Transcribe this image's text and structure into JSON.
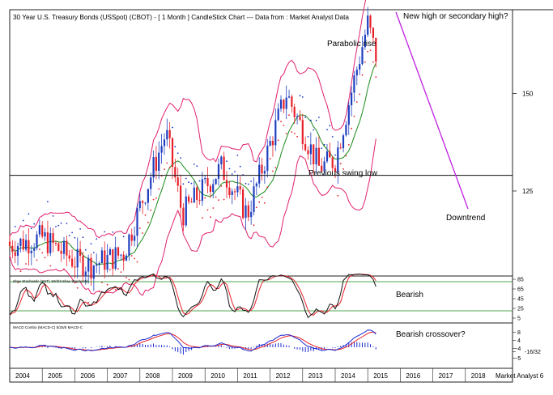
{
  "title": "30 Year U.S. Treasury Bonds (USSpot) (CBOT) -  [ 1 Month ] CandleStick Chart --- Data from : Market Analyst Data",
  "watermark": "Market Analyst 6",
  "colors": {
    "up": "#1f3fbf",
    "down": "#e8202a",
    "bollinger": "#e0206e",
    "ma_short": "#1a8a1a",
    "psar_down": "#1a38c8",
    "psar_up": "#e8202a",
    "annotation_line": "#c020e0",
    "stoch_k": "#111111",
    "stoch_d": "#e8202a",
    "macd": "#1a2ad0",
    "signal": "#e8202a",
    "grid": "#1a8a1a"
  },
  "annotations": {
    "new_high": "New high or secondary high?",
    "parabolic": "Parabolic rise",
    "swing_low": "Previous swing low",
    "downtrend": "Downtrend",
    "bearish": "Bearish",
    "bearish_crossover": "Bearish crossover?"
  },
  "chart_data": [
    {
      "type": "candlestick",
      "title": "30 Year U.S. Treasury Bonds (USSpot) (CBOT) -  [ 1 Month ] CandleStick Chart --- Data from : Market Analyst Data",
      "x_ticks": [
        "2004",
        "2005",
        "2006",
        "2007",
        "2008",
        "2009",
        "2010",
        "2011",
        "2012",
        "2013",
        "2014",
        "2015",
        "2016",
        "2017",
        "2018"
      ],
      "y_ticks": [
        "150",
        "125"
      ],
      "y_range": [
        103,
        172
      ],
      "horizontal_line": 129,
      "key_points": [
        {
          "date": "2004.0",
          "close": 111
        },
        {
          "date": "2005.0",
          "close": 113
        },
        {
          "date": "2006.0",
          "close": 107
        },
        {
          "date": "2006.5",
          "close": 106
        },
        {
          "date": "2007.5",
          "close": 109
        },
        {
          "date": "2008.8",
          "close": 140
        },
        {
          "date": "2009.3",
          "close": 119
        },
        {
          "date": "2010.5",
          "close": 131
        },
        {
          "date": "2011.3",
          "close": 119
        },
        {
          "date": "2012.5",
          "close": 150
        },
        {
          "date": "2013.5",
          "close": 131
        },
        {
          "date": "2014.0",
          "close": 133
        },
        {
          "date": "2015.0",
          "close": 168
        },
        {
          "date": "2015.3",
          "close": 158
        }
      ],
      "series": [
        {
          "name": "Bollinger Bands"
        },
        {
          "name": "Moving Average"
        },
        {
          "name": "Parabolic SAR"
        }
      ]
    },
    {
      "type": "line",
      "title": "Slow Stochastic (SST) 10/3/3 Slow Stochastic",
      "y_ticks": [
        "85",
        "65",
        "45",
        "25",
        "5"
      ],
      "y_range": [
        0,
        95
      ],
      "levels": [
        80,
        20
      ],
      "series": [
        {
          "name": "%K"
        },
        {
          "name": "%D"
        }
      ]
    },
    {
      "type": "line",
      "title": "MACD Combo (MACD-C) 5/25/5 MACD-C",
      "y_ticks": [
        "8",
        "4",
        "-4",
        "-5",
        "-16/32"
      ],
      "series": [
        {
          "name": "MACD"
        },
        {
          "name": "Signal"
        },
        {
          "name": "Histogram"
        }
      ]
    }
  ]
}
